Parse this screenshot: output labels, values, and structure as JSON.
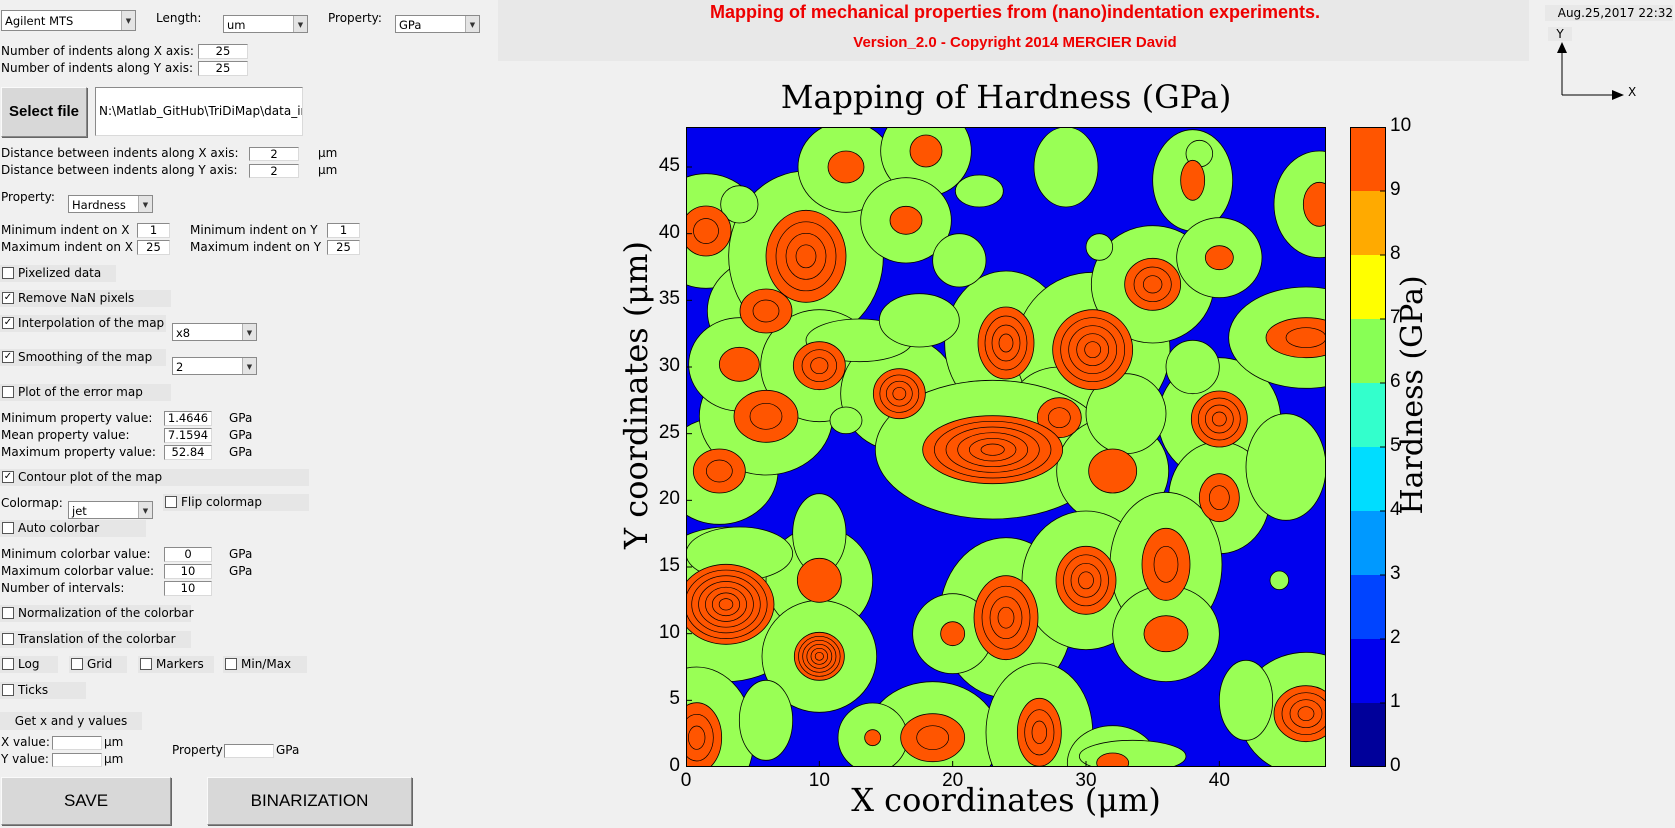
{
  "app": {
    "title": "Mapping of mechanical properties from (nano)indentation experiments.",
    "subtitle": "Version_2.0 - Copyright 2014 MERCIER David",
    "datetime": "Aug.25,2017 22:32",
    "axis_indicator": {
      "y": "Y",
      "x": "X"
    }
  },
  "top": {
    "instrument": "Agilent MTS",
    "length_label": "Length:",
    "length_unit": "um",
    "property_label": "Property:",
    "property_unit": "GPa"
  },
  "indents": {
    "x_label": "Number of indents along X axis:",
    "x_value": "25",
    "y_label": "Number of indents along Y axis:",
    "y_value": "25"
  },
  "file": {
    "button": "Select file",
    "path": "N:\\Matlab_GitHub\\TriDiMap\\data_in"
  },
  "distance": {
    "x_label": "Distance between indents along X axis:",
    "x_value": "2",
    "y_label": "Distance between indents along Y axis:",
    "y_value": "2",
    "unit": "μm"
  },
  "property": {
    "label": "Property:",
    "value": "Hardness"
  },
  "range": {
    "min_x_label": "Minimum indent on X",
    "min_x": "1",
    "min_y_label": "Minimum indent on Y",
    "min_y": "1",
    "max_x_label": "Maximum indent on X",
    "max_x": "25",
    "max_y_label": "Maximum indent on Y",
    "max_y": "25"
  },
  "options": {
    "pixelized": {
      "label": "Pixelized data",
      "checked": false
    },
    "remove_nan": {
      "label": "Remove NaN pixels",
      "checked": true
    },
    "interpolation": {
      "label": "Interpolation of the map",
      "checked": true,
      "value": "x8"
    },
    "smoothing": {
      "label": "Smoothing of the map",
      "checked": true,
      "value": "2"
    },
    "error_map": {
      "label": "Plot of the error map",
      "checked": false
    }
  },
  "stats": {
    "min_label": "Minimum property value:",
    "min": "1.4646",
    "mean_label": "Mean property value:",
    "mean": "7.1594",
    "max_label": "Maximum property value:",
    "max": "52.84",
    "unit": "GPa"
  },
  "contour": {
    "label": "Contour plot of the map",
    "checked": true
  },
  "colormap": {
    "label": "Colormap:",
    "value": "jet",
    "flip_label": "Flip colormap",
    "flip_checked": false,
    "auto_label": "Auto colorbar",
    "auto_checked": false
  },
  "colorbar": {
    "min_label": "Minimum colorbar value:",
    "min": "0",
    "max_label": "Maximum colorbar value:",
    "max": "10",
    "intervals_label": "Number of intervals:",
    "intervals": "10",
    "unit": "GPa",
    "normalization_label": "Normalization of the colorbar",
    "translation_label": "Translation of the colorbar"
  },
  "flags": {
    "log": "Log",
    "grid": "Grid",
    "markers": "Markers",
    "minmax": "Min/Max",
    "ticks": "Ticks"
  },
  "getxy": {
    "header": "Get x and y values",
    "x_label": "X value:",
    "y_label": "Y value:",
    "unit": "μm",
    "property_label": "Property",
    "property_unit": "GPa"
  },
  "buttons": {
    "save": "SAVE",
    "binarization": "BINARIZATION"
  },
  "chart_data": {
    "type": "heatmap",
    "title": "Mapping of Hardness (GPa)",
    "xlabel": "X coordinates (μm)",
    "ylabel": "Y coordinates (μm)",
    "colorbar_label": "Hardness (GPa)",
    "xlim": [
      0,
      48
    ],
    "ylim": [
      0,
      48
    ],
    "x_ticks": [
      "0",
      "10",
      "20",
      "30",
      "40"
    ],
    "y_ticks": [
      "0",
      "5",
      "10",
      "15",
      "20",
      "25",
      "30",
      "35",
      "40",
      "45"
    ],
    "colorbar_ticks": [
      "0",
      "1",
      "2",
      "3",
      "4",
      "5",
      "6",
      "7",
      "8",
      "9",
      "10"
    ],
    "colorbar_range": [
      0,
      10
    ],
    "colorbar_intervals": 10,
    "colormap": "jet",
    "colorbar_colors": [
      "#00009a",
      "#0000ee",
      "#0044ff",
      "#0099ff",
      "#00ddff",
      "#33ffcc",
      "#88ff55",
      "#ffff00",
      "#ffaa00",
      "#ff5500"
    ],
    "background_color": "#0000ee",
    "level_colors": {
      "mid": "#99ff55",
      "high": "#ff5500"
    },
    "grid": false,
    "contour_lines": true,
    "features": [
      {
        "x": 1.5,
        "y": 40.2,
        "rx": 2.5,
        "ry": 2.5,
        "peak": true,
        "rings": 1
      },
      {
        "x": 2.5,
        "y": 22.2,
        "rx": 2.6,
        "ry": 2.2,
        "peak": true,
        "rings": 1
      },
      {
        "x": 3,
        "y": 12.2,
        "rx": 4.8,
        "ry": 4.0,
        "peak": true,
        "rings": 6
      },
      {
        "x": 0.8,
        "y": 2.2,
        "rx": 2.5,
        "ry": 3.5,
        "peak": true,
        "rings": 2
      },
      {
        "x": 6,
        "y": 26.3,
        "rx": 3.2,
        "ry": 2.6,
        "peak": true,
        "rings": 1
      },
      {
        "x": 6,
        "y": 34.2,
        "rx": 2.6,
        "ry": 2.2,
        "peak": true,
        "rings": 1
      },
      {
        "x": 4,
        "y": 30.2,
        "rx": 2.0,
        "ry": 1.7,
        "peak": true,
        "rings": 0
      },
      {
        "x": 9,
        "y": 38.3,
        "rx": 4.0,
        "ry": 4.6,
        "peak": true,
        "rings": 3
      },
      {
        "x": 12,
        "y": 45.0,
        "rx": 1.8,
        "ry": 1.6,
        "peak": true,
        "rings": 0
      },
      {
        "x": 10,
        "y": 30.1,
        "rx": 2.6,
        "ry": 2.4,
        "peak": true,
        "rings": 2
      },
      {
        "x": 16,
        "y": 28.0,
        "rx": 2.6,
        "ry": 2.5,
        "peak": true,
        "rings": 3
      },
      {
        "x": 10,
        "y": 14.0,
        "rx": 2.2,
        "ry": 2.2,
        "peak": true,
        "rings": 0
      },
      {
        "x": 10,
        "y": 8.3,
        "rx": 2.5,
        "ry": 2.4,
        "peak": true,
        "rings": 5
      },
      {
        "x": 18,
        "y": 46.2,
        "rx": 1.6,
        "ry": 1.6,
        "peak": true,
        "rings": 0
      },
      {
        "x": 24,
        "y": 31.8,
        "rx": 2.8,
        "ry": 3.6,
        "peak": true,
        "rings": 3
      },
      {
        "x": 30.5,
        "y": 31.3,
        "rx": 4.0,
        "ry": 4.0,
        "peak": true,
        "rings": 4
      },
      {
        "x": 28,
        "y": 26.2,
        "rx": 2.2,
        "ry": 2.0,
        "peak": true,
        "rings": 1
      },
      {
        "x": 23,
        "y": 23.8,
        "rx": 7.0,
        "ry": 3.4,
        "peak": true,
        "rings": 5
      },
      {
        "x": 32,
        "y": 22.2,
        "rx": 2.4,
        "ry": 2.2,
        "peak": true,
        "rings": 0
      },
      {
        "x": 24,
        "y": 11.2,
        "rx": 3.2,
        "ry": 4.2,
        "peak": true,
        "rings": 3
      },
      {
        "x": 20,
        "y": 10.0,
        "rx": 1.2,
        "ry": 1.2,
        "peak": true,
        "rings": 0
      },
      {
        "x": 30,
        "y": 14.0,
        "rx": 3.0,
        "ry": 3.4,
        "peak": true,
        "rings": 3
      },
      {
        "x": 35,
        "y": 36.2,
        "rx": 2.8,
        "ry": 2.6,
        "peak": true,
        "rings": 2
      },
      {
        "x": 40,
        "y": 26.1,
        "rx": 2.8,
        "ry": 2.8,
        "peak": true,
        "rings": 3
      },
      {
        "x": 40,
        "y": 20.2,
        "rx": 2.0,
        "ry": 2.4,
        "peak": true,
        "rings": 1
      },
      {
        "x": 36,
        "y": 15.2,
        "rx": 2.4,
        "ry": 3.6,
        "peak": true,
        "rings": 1
      },
      {
        "x": 36,
        "y": 10.0,
        "rx": 2.2,
        "ry": 1.8,
        "peak": true,
        "rings": 0
      },
      {
        "x": 38,
        "y": 44.0,
        "rx": 1.2,
        "ry": 2.0,
        "peak": true,
        "rings": 0
      },
      {
        "x": 40,
        "y": 38.2,
        "rx": 1.4,
        "ry": 1.2,
        "peak": true,
        "rings": 0
      },
      {
        "x": 46.5,
        "y": 32.2,
        "rx": 4.0,
        "ry": 2.0,
        "peak": true,
        "rings": 1
      },
      {
        "x": 47.5,
        "y": 42.2,
        "rx": 1.6,
        "ry": 2.2,
        "peak": true,
        "rings": 0
      },
      {
        "x": 46.5,
        "y": 4.0,
        "rx": 3.2,
        "ry": 2.8,
        "peak": true,
        "rings": 3
      },
      {
        "x": 18.5,
        "y": 2.2,
        "rx": 3.2,
        "ry": 2.4,
        "peak": true,
        "rings": 1
      },
      {
        "x": 26.5,
        "y": 2.6,
        "rx": 2.2,
        "ry": 3.4,
        "peak": true,
        "rings": 2
      },
      {
        "x": 32,
        "y": 0.3,
        "rx": 1.6,
        "ry": 1.0,
        "peak": true,
        "rings": 0
      },
      {
        "x": 14,
        "y": 2.2,
        "rx": 0.8,
        "ry": 0.8,
        "peak": true,
        "rings": 0
      },
      {
        "x": 16.5,
        "y": 41.0,
        "rx": 1.6,
        "ry": 1.4,
        "peak": true,
        "rings": 0
      },
      {
        "x": 20.5,
        "y": 38.0,
        "rx": 2.0,
        "ry": 2.0,
        "peak": false,
        "rings": 0
      },
      {
        "x": 4,
        "y": 42.2,
        "rx": 1.4,
        "ry": 1.4,
        "peak": false,
        "rings": 0
      },
      {
        "x": 22,
        "y": 43.2,
        "rx": 1.8,
        "ry": 1.2,
        "peak": false,
        "rings": 0
      },
      {
        "x": 28.5,
        "y": 45.0,
        "rx": 2.4,
        "ry": 3.0,
        "peak": false,
        "rings": 0
      },
      {
        "x": 31,
        "y": 39.0,
        "rx": 1.0,
        "ry": 1.0,
        "peak": false,
        "rings": 0
      },
      {
        "x": 13,
        "y": 32.0,
        "rx": 4.0,
        "ry": 1.6,
        "peak": false,
        "rings": 0
      },
      {
        "x": 17.5,
        "y": 33.5,
        "rx": 3.0,
        "ry": 2.0,
        "peak": false,
        "rings": 0
      },
      {
        "x": 12,
        "y": 26.0,
        "rx": 1.2,
        "ry": 1.0,
        "peak": false,
        "rings": 0
      },
      {
        "x": 38,
        "y": 30.0,
        "rx": 2.0,
        "ry": 2.0,
        "peak": false,
        "rings": 0
      },
      {
        "x": 45,
        "y": 22.5,
        "rx": 3.0,
        "ry": 4.0,
        "peak": false,
        "rings": 0
      },
      {
        "x": 44.5,
        "y": 14.0,
        "rx": 0.7,
        "ry": 0.7,
        "peak": false,
        "rings": 0
      },
      {
        "x": 6,
        "y": 3.5,
        "rx": 2.0,
        "ry": 3.0,
        "peak": false,
        "rings": 0
      },
      {
        "x": 4,
        "y": 16.0,
        "rx": 4.0,
        "ry": 2.0,
        "peak": false,
        "rings": 0
      },
      {
        "x": 10,
        "y": 17.5,
        "rx": 2.0,
        "ry": 3.0,
        "peak": false,
        "rings": 0
      },
      {
        "x": 33,
        "y": 26.5,
        "rx": 3.0,
        "ry": 3.0,
        "peak": false,
        "rings": 0
      },
      {
        "x": 42,
        "y": 5.0,
        "rx": 2.0,
        "ry": 3.0,
        "peak": false,
        "rings": 0
      },
      {
        "x": 38.5,
        "y": 46.0,
        "rx": 1.0,
        "ry": 1.0,
        "peak": false,
        "rings": 0
      },
      {
        "x": 33.5,
        "y": 0.8,
        "rx": 4.0,
        "ry": 1.2,
        "peak": false,
        "rings": 0
      }
    ]
  }
}
